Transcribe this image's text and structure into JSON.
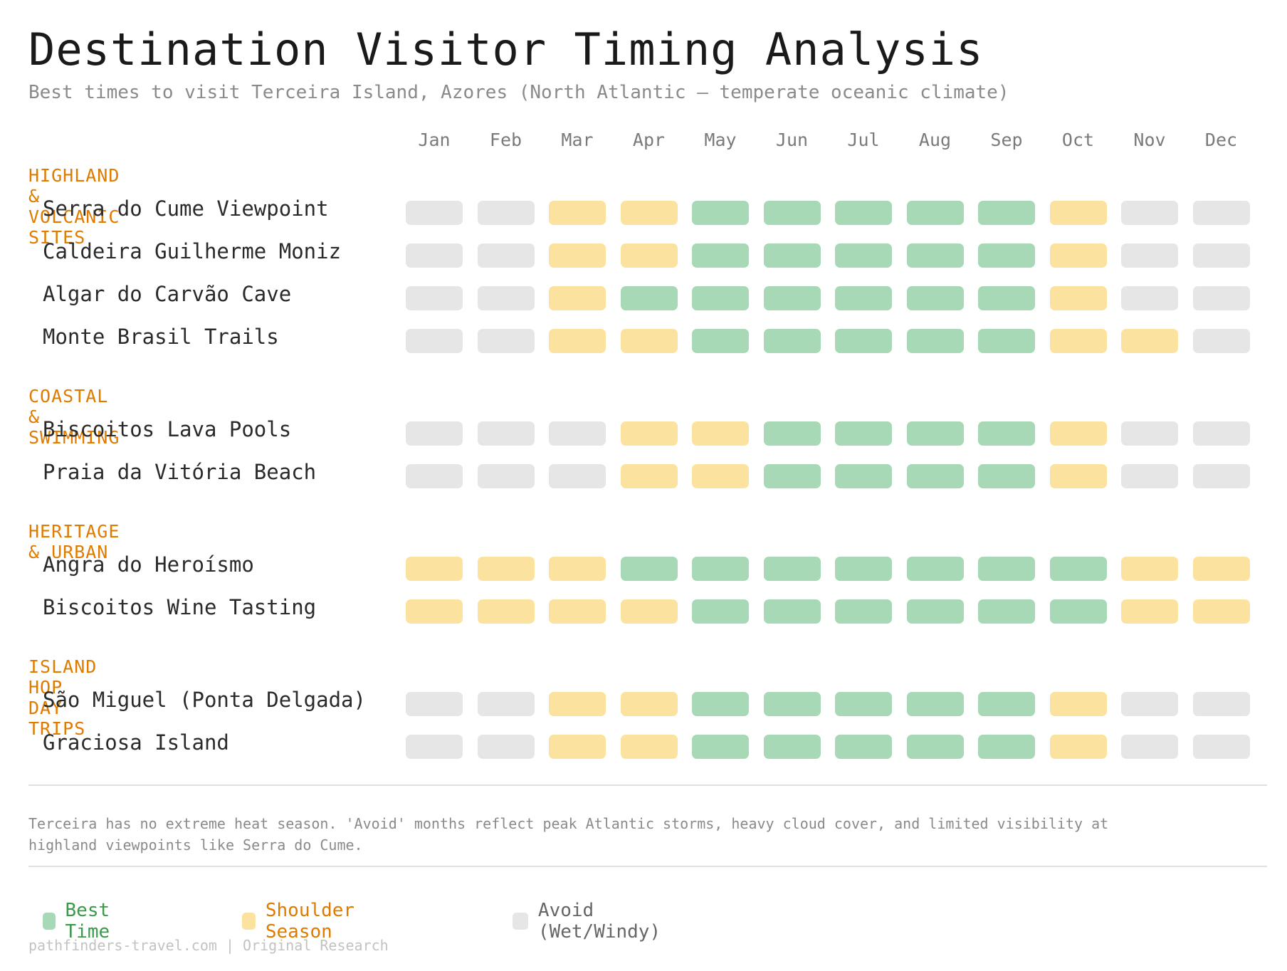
{
  "title": "Destination Visitor Timing Analysis",
  "subtitle": "Best times to visit Terceira Island, Azores (North Atlantic — temperate oceanic climate)",
  "note": "Terceira has no extreme heat season. 'Avoid' months reflect peak Atlantic storms, heavy cloud cover, and limited visibility at highland viewpoints like Serra do Cume.",
  "footer": "pathfinders-travel.com | Original Research",
  "colors": {
    "best": "#a8d9b6",
    "shoulder": "#fbe39f",
    "avoid": "#e6e6e6",
    "category": "#e07b00",
    "legend_best_text": "#3a9a4a",
    "legend_shoulder_text": "#e07b00",
    "legend_avoid_text": "#666666"
  },
  "legend": [
    {
      "key": "best",
      "label": "Best Time"
    },
    {
      "key": "shoulder",
      "label": "Shoulder Season"
    },
    {
      "key": "avoid",
      "label": "Avoid (Wet/Windy)"
    }
  ],
  "chart_data": {
    "type": "heatmap",
    "months": [
      "Jan",
      "Feb",
      "Mar",
      "Apr",
      "May",
      "Jun",
      "Jul",
      "Aug",
      "Sep",
      "Oct",
      "Nov",
      "Dec"
    ],
    "levels": [
      "best",
      "shoulder",
      "avoid"
    ],
    "groups": [
      {
        "category": "HIGHLAND & VOLCANIC SITES",
        "rows": [
          {
            "name": "Serra do Cume Viewpoint",
            "values": [
              "avoid",
              "avoid",
              "shoulder",
              "shoulder",
              "best",
              "best",
              "best",
              "best",
              "best",
              "shoulder",
              "avoid",
              "avoid"
            ]
          },
          {
            "name": "Caldeira Guilherme Moniz",
            "values": [
              "avoid",
              "avoid",
              "shoulder",
              "shoulder",
              "best",
              "best",
              "best",
              "best",
              "best",
              "shoulder",
              "avoid",
              "avoid"
            ]
          },
          {
            "name": "Algar do Carvão Cave",
            "values": [
              "avoid",
              "avoid",
              "shoulder",
              "best",
              "best",
              "best",
              "best",
              "best",
              "best",
              "shoulder",
              "avoid",
              "avoid"
            ]
          },
          {
            "name": "Monte Brasil Trails",
            "values": [
              "avoid",
              "avoid",
              "shoulder",
              "shoulder",
              "best",
              "best",
              "best",
              "best",
              "best",
              "shoulder",
              "shoulder",
              "avoid"
            ]
          }
        ]
      },
      {
        "category": "COASTAL & SWIMMING",
        "rows": [
          {
            "name": "Biscoitos Lava Pools",
            "values": [
              "avoid",
              "avoid",
              "avoid",
              "shoulder",
              "shoulder",
              "best",
              "best",
              "best",
              "best",
              "shoulder",
              "avoid",
              "avoid"
            ]
          },
          {
            "name": "Praia da Vitória Beach",
            "values": [
              "avoid",
              "avoid",
              "avoid",
              "shoulder",
              "shoulder",
              "best",
              "best",
              "best",
              "best",
              "shoulder",
              "avoid",
              "avoid"
            ]
          }
        ]
      },
      {
        "category": "HERITAGE & URBAN",
        "rows": [
          {
            "name": "Angra do Heroísmo",
            "values": [
              "shoulder",
              "shoulder",
              "shoulder",
              "best",
              "best",
              "best",
              "best",
              "best",
              "best",
              "best",
              "shoulder",
              "shoulder"
            ]
          },
          {
            "name": "Biscoitos Wine Tasting",
            "values": [
              "shoulder",
              "shoulder",
              "shoulder",
              "shoulder",
              "best",
              "best",
              "best",
              "best",
              "best",
              "best",
              "shoulder",
              "shoulder"
            ]
          }
        ]
      },
      {
        "category": "ISLAND HOP DAY TRIPS",
        "rows": [
          {
            "name": "São Miguel (Ponta Delgada)",
            "values": [
              "avoid",
              "avoid",
              "shoulder",
              "shoulder",
              "best",
              "best",
              "best",
              "best",
              "best",
              "shoulder",
              "avoid",
              "avoid"
            ]
          },
          {
            "name": "Graciosa Island",
            "values": [
              "avoid",
              "avoid",
              "shoulder",
              "shoulder",
              "best",
              "best",
              "best",
              "best",
              "best",
              "shoulder",
              "avoid",
              "avoid"
            ]
          }
        ]
      }
    ]
  }
}
